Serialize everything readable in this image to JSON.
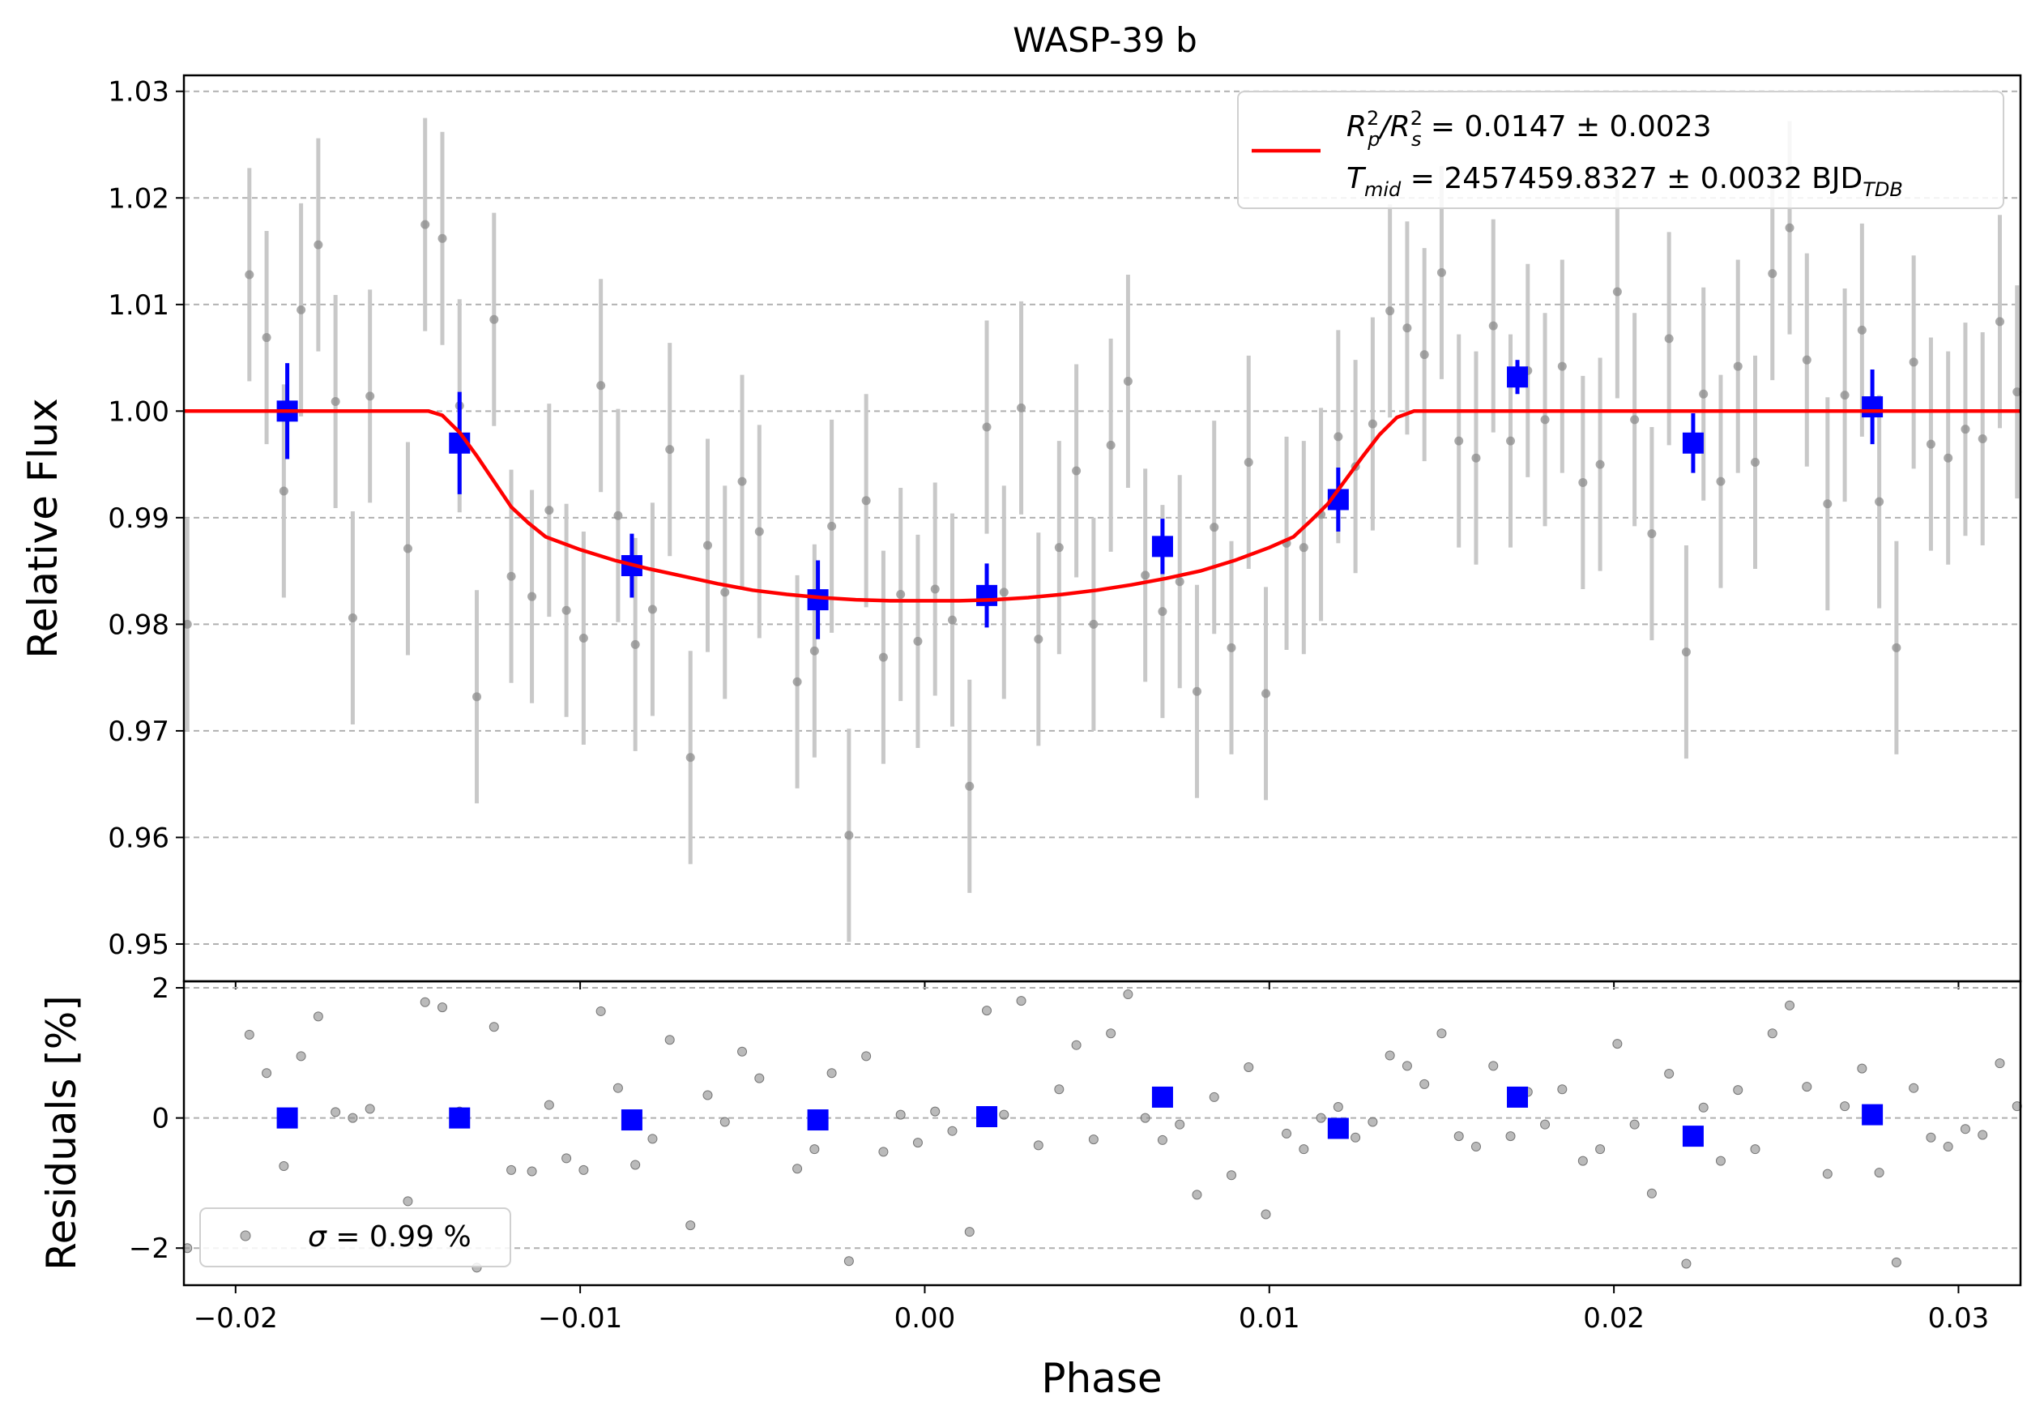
{
  "chart_data": [
    {
      "panel": "main",
      "type": "scatter",
      "title": "WASP-39 b",
      "xlabel": "",
      "ylabel": "Relative Flux",
      "xlim": [
        -0.0215,
        0.0318
      ],
      "ylim": [
        0.9465,
        1.0315
      ],
      "xticks": [
        -0.02,
        -0.01,
        0.0,
        0.01,
        0.02,
        0.03
      ],
      "yticks": [
        0.95,
        0.96,
        0.97,
        0.98,
        0.99,
        1.0,
        1.01,
        1.02,
        1.03
      ],
      "ytick_labels": [
        "0.95",
        "0.96",
        "0.97",
        "0.98",
        "0.99",
        "1.00",
        "1.01",
        "1.02",
        "1.03"
      ],
      "grid": "y-dashed",
      "legend_position": "top-right",
      "legend_lines": [
        {
          "prefix": "R",
          "sup1": "2",
          "sub1": "p",
          "mid": "/R",
          "sup2": "2",
          "sub2": "s",
          "rest": " = 0.0147 ± 0.0023"
        },
        {
          "prefix": "T",
          "sub1": "mid",
          "rest": " = 2457459.8327 ± 0.0032 BJD",
          "sub2": "TDB"
        }
      ],
      "colors": {
        "raw": "#8c8c8c",
        "errorbar": "#c8c8c8",
        "binned": "#0000ff",
        "model": "#ff0000"
      },
      "raw": {
        "x": [
          -0.0214,
          -0.0196,
          -0.0191,
          -0.0186,
          -0.0181,
          -0.0176,
          -0.0171,
          -0.0166,
          -0.0161,
          -0.015,
          -0.0145,
          -0.014,
          -0.0135,
          -0.013,
          -0.0125,
          -0.012,
          -0.0114,
          -0.0109,
          -0.0104,
          -0.0099,
          -0.0094,
          -0.0089,
          -0.0084,
          -0.0079,
          -0.0074,
          -0.0068,
          -0.0063,
          -0.0058,
          -0.0053,
          -0.0048,
          -0.0037,
          -0.0032,
          -0.0027,
          -0.0022,
          -0.0017,
          -0.0012,
          -0.0007,
          -0.0002,
          0.0003,
          0.0008,
          0.0013,
          0.0018,
          0.0023,
          0.0028,
          0.0033,
          0.0039,
          0.0044,
          0.0049,
          0.0054,
          0.0059,
          0.0064,
          0.0069,
          0.0074,
          0.0079,
          0.0084,
          0.0089,
          0.0094,
          0.0099,
          0.0105,
          0.011,
          0.0115,
          0.012,
          0.0125,
          0.013,
          0.0135,
          0.014,
          0.0145,
          0.015,
          0.0155,
          0.016,
          0.0165,
          0.017,
          0.0175,
          0.018,
          0.0185,
          0.0191,
          0.0196,
          0.0201,
          0.0206,
          0.0211,
          0.0216,
          0.0221,
          0.0226,
          0.0231,
          0.0236,
          0.0241,
          0.0246,
          0.0251,
          0.0256,
          0.0262,
          0.0267,
          0.0272,
          0.0277,
          0.0282,
          0.0287,
          0.0292,
          0.0297,
          0.0302,
          0.0307,
          0.0312,
          0.0317
        ],
        "y": [
          0.98,
          1.0128,
          1.0069,
          0.9925,
          1.0095,
          1.0156,
          1.0009,
          0.9806,
          1.0014,
          0.9871,
          1.0175,
          1.0162,
          1.0005,
          0.9732,
          1.0086,
          0.9845,
          0.9826,
          0.9907,
          0.9813,
          0.9787,
          1.0024,
          0.9902,
          0.9781,
          0.9814,
          0.9964,
          0.9675,
          0.9874,
          0.983,
          0.9934,
          0.9887,
          0.9746,
          0.9775,
          0.9892,
          0.9602,
          0.9916,
          0.9769,
          0.9828,
          0.9784,
          0.9833,
          0.9804,
          0.9648,
          0.9985,
          0.983,
          1.0003,
          0.9786,
          0.9872,
          0.9944,
          0.98,
          0.9968,
          1.0028,
          0.9846,
          0.9812,
          0.984,
          0.9737,
          0.9891,
          0.9778,
          0.9952,
          0.9735,
          0.9876,
          0.9872,
          0.9903,
          0.9976,
          0.9948,
          0.9988,
          1.0094,
          1.0078,
          1.0053,
          1.013,
          0.9972,
          0.9956,
          1.008,
          0.9972,
          1.0038,
          0.9992,
          1.0042,
          0.9933,
          0.995,
          1.0112,
          0.9992,
          0.9885,
          1.0068,
          0.9774,
          1.0016,
          0.9934,
          1.0042,
          0.9952,
          1.0129,
          1.0172,
          1.0048,
          0.9913,
          1.0015,
          1.0076,
          0.9915,
          0.9778,
          1.0046,
          0.9969,
          0.9956,
          0.9983,
          0.9974,
          1.0084,
          1.0018
        ],
        "yerr": 0.01
      },
      "binned": {
        "x": [
          -0.0185,
          -0.0135,
          -0.0085,
          -0.0031,
          0.0018,
          0.0069,
          0.012,
          0.0172,
          0.0223,
          0.0275
        ],
        "y": [
          1.0,
          0.997,
          0.9855,
          0.9823,
          0.9827,
          0.9873,
          0.9917,
          1.0032,
          0.997,
          1.0004
        ],
        "yerr": [
          0.0045,
          0.0048,
          0.003,
          0.0037,
          0.003,
          0.0026,
          0.003,
          0.0016,
          0.0028,
          0.0035
        ]
      },
      "model": {
        "x": [
          -0.0215,
          -0.0144,
          -0.014,
          -0.0135,
          -0.013,
          -0.0125,
          -0.012,
          -0.0115,
          -0.011,
          -0.01,
          -0.009,
          -0.008,
          -0.007,
          -0.006,
          -0.005,
          -0.004,
          -0.003,
          -0.002,
          -0.001,
          0.0,
          0.001,
          0.002,
          0.003,
          0.004,
          0.005,
          0.006,
          0.007,
          0.008,
          0.009,
          0.01,
          0.0107,
          0.0112,
          0.0117,
          0.0122,
          0.0127,
          0.0132,
          0.0137,
          0.0142,
          0.0146,
          0.0318
        ],
        "y": [
          1.0,
          1.0,
          0.9996,
          0.998,
          0.9958,
          0.9934,
          0.991,
          0.9895,
          0.9882,
          0.987,
          0.986,
          0.9852,
          0.9845,
          0.9838,
          0.9832,
          0.9828,
          0.9825,
          0.9823,
          0.9822,
          0.9822,
          0.9822,
          0.9823,
          0.9825,
          0.9828,
          0.9832,
          0.9837,
          0.9843,
          0.985,
          0.986,
          0.9872,
          0.9882,
          0.9897,
          0.9913,
          0.9935,
          0.9957,
          0.9978,
          0.9994,
          1.0,
          1.0,
          1.0
        ]
      }
    },
    {
      "panel": "residuals",
      "type": "scatter",
      "xlabel": "Phase",
      "ylabel": "Residuals [%]",
      "xlim": [
        -0.0215,
        0.0318
      ],
      "ylim": [
        -2.57,
        2.1
      ],
      "xticks": [
        -0.02,
        -0.01,
        0.0,
        0.01,
        0.02,
        0.03
      ],
      "xtick_labels": [
        "−0.02",
        "−0.01",
        "0.00",
        "0.01",
        "0.02",
        "0.03"
      ],
      "yticks": [
        -2,
        0,
        2
      ],
      "ytick_labels": [
        "−2",
        "0",
        "2"
      ],
      "grid": "y-dashed",
      "legend_position": "lower-left",
      "legend_label_symbol": "σ",
      "legend_label_text": " = 0.99 %",
      "raw": {
        "x": [
          -0.0214,
          -0.0196,
          -0.0191,
          -0.0186,
          -0.0181,
          -0.0176,
          -0.0171,
          -0.0166,
          -0.0161,
          -0.015,
          -0.0145,
          -0.014,
          -0.0135,
          -0.013,
          -0.0125,
          -0.012,
          -0.0114,
          -0.0109,
          -0.0104,
          -0.0099,
          -0.0094,
          -0.0089,
          -0.0084,
          -0.0079,
          -0.0074,
          -0.0068,
          -0.0063,
          -0.0058,
          -0.0053,
          -0.0048,
          -0.0037,
          -0.0032,
          -0.0027,
          -0.0022,
          -0.0017,
          -0.0012,
          -0.0007,
          -0.0002,
          0.0003,
          0.0008,
          0.0013,
          0.0018,
          0.0023,
          0.0028,
          0.0033,
          0.0039,
          0.0044,
          0.0049,
          0.0054,
          0.0059,
          0.0064,
          0.0069,
          0.0074,
          0.0079,
          0.0084,
          0.0089,
          0.0094,
          0.0099,
          0.0105,
          0.011,
          0.0115,
          0.012,
          0.0125,
          0.013,
          0.0135,
          0.014,
          0.0145,
          0.015,
          0.0155,
          0.016,
          0.0165,
          0.017,
          0.0175,
          0.018,
          0.0185,
          0.0191,
          0.0196,
          0.0201,
          0.0206,
          0.0211,
          0.0216,
          0.0221,
          0.0226,
          0.0231,
          0.0236,
          0.0241,
          0.0246,
          0.0251,
          0.0256,
          0.0262,
          0.0267,
          0.0272,
          0.0277,
          0.0282,
          0.0287,
          0.0292,
          0.0297,
          0.0302,
          0.0307,
          0.0312,
          0.0317
        ],
        "y": [
          -2.0,
          1.28,
          0.69,
          -0.74,
          0.95,
          1.56,
          0.09,
          0.0,
          0.14,
          -1.28,
          1.78,
          1.7,
          0.1,
          -2.3,
          1.4,
          -0.8,
          -0.82,
          0.2,
          -0.62,
          -0.8,
          1.64,
          0.46,
          -0.72,
          -0.32,
          1.2,
          -1.65,
          0.35,
          -0.06,
          1.02,
          0.61,
          -0.78,
          -0.48,
          0.69,
          -2.2,
          0.95,
          -0.52,
          0.05,
          -0.38,
          0.1,
          -0.2,
          -1.75,
          1.65,
          0.05,
          1.8,
          -0.42,
          0.44,
          1.12,
          -0.33,
          1.3,
          1.9,
          0.0,
          -0.34,
          -0.1,
          -1.18,
          0.32,
          -0.88,
          0.78,
          -1.48,
          -0.24,
          -0.48,
          0.0,
          0.17,
          -0.3,
          -0.06,
          0.96,
          0.8,
          0.52,
          1.3,
          -0.28,
          -0.44,
          0.8,
          -0.28,
          0.4,
          -0.1,
          0.44,
          -0.66,
          -0.48,
          1.14,
          -0.1,
          -1.16,
          0.68,
          -2.24,
          0.16,
          -0.66,
          0.43,
          -0.48,
          1.3,
          1.73,
          0.48,
          -0.86,
          0.18,
          0.76,
          -0.84,
          -2.22,
          0.46,
          -0.3,
          -0.44,
          -0.17,
          -0.26,
          0.84,
          0.18
        ]
      },
      "binned": {
        "x": [
          -0.0185,
          -0.0135,
          -0.0085,
          -0.0031,
          0.0018,
          0.0069,
          0.012,
          0.0172,
          0.0223,
          0.0275
        ],
        "y": [
          0.0,
          0.0,
          -0.03,
          -0.03,
          0.02,
          0.32,
          -0.16,
          0.32,
          -0.28,
          0.05
        ]
      }
    }
  ]
}
